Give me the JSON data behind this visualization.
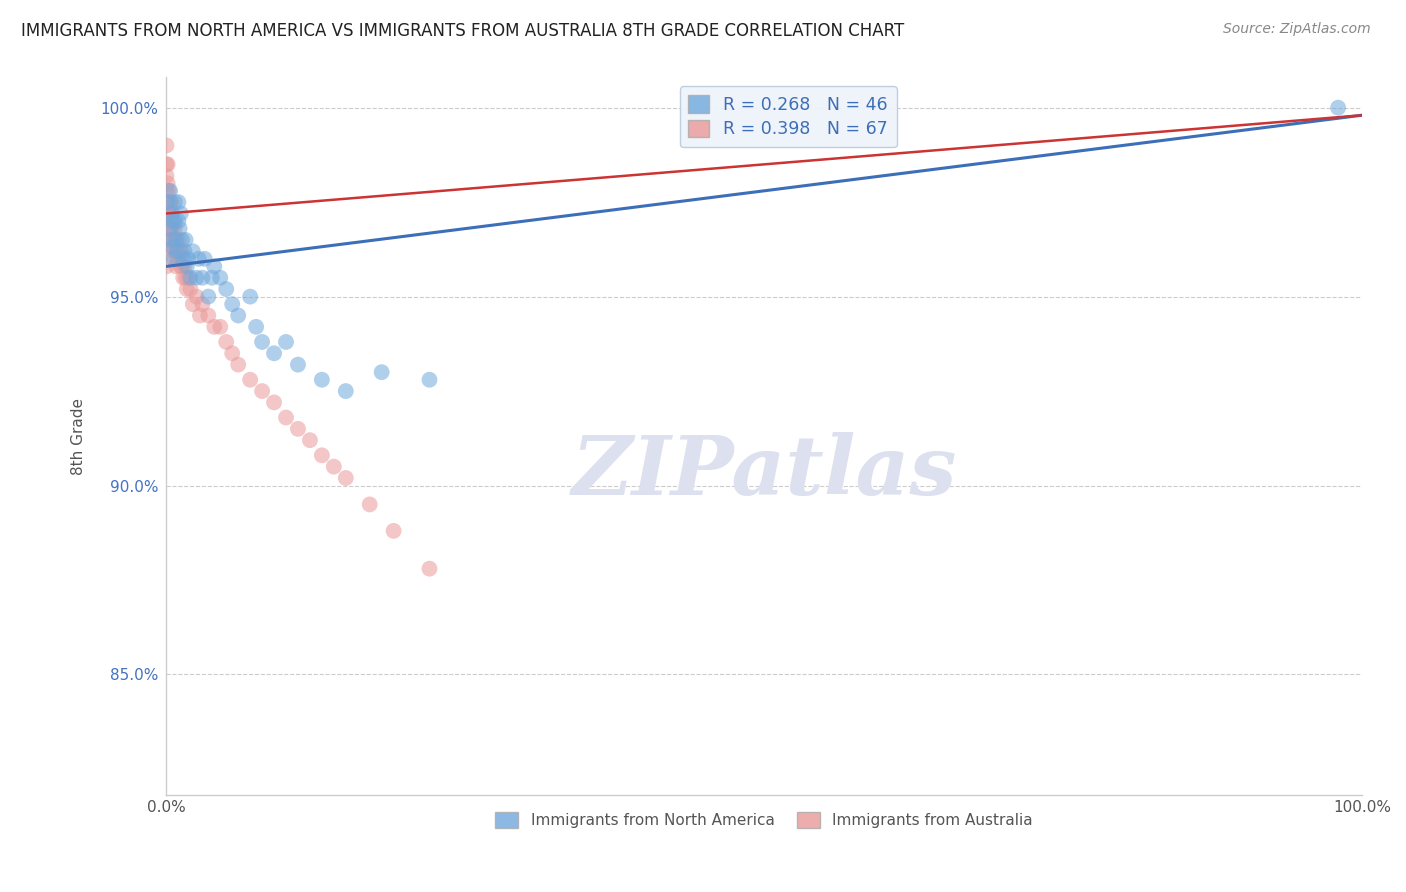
{
  "title": "IMMIGRANTS FROM NORTH AMERICA VS IMMIGRANTS FROM AUSTRALIA 8TH GRADE CORRELATION CHART",
  "source": "Source: ZipAtlas.com",
  "ylabel": "8th Grade",
  "xlim": [
    0.0,
    1.0
  ],
  "ylim": [
    0.818,
    1.008
  ],
  "y_tick_values": [
    0.85,
    0.9,
    0.95,
    1.0
  ],
  "legend_label_blue": "Immigrants from North America",
  "legend_label_pink": "Immigrants from Australia",
  "R_blue": 0.268,
  "N_blue": 46,
  "R_pink": 0.398,
  "N_pink": 67,
  "blue_color": "#6fa8dc",
  "pink_color": "#ea9999",
  "trend_blue_color": "#3d6eb8",
  "trend_pink_color": "#cc3333",
  "background_color": "#ffffff",
  "grid_color": "#cccccc",
  "watermark_color": "#dde0ee",
  "blue_scatter_x": [
    0.001,
    0.002,
    0.003,
    0.003,
    0.004,
    0.005,
    0.005,
    0.006,
    0.007,
    0.007,
    0.008,
    0.009,
    0.01,
    0.01,
    0.011,
    0.012,
    0.013,
    0.014,
    0.015,
    0.016,
    0.017,
    0.018,
    0.02,
    0.022,
    0.025,
    0.027,
    0.03,
    0.032,
    0.035,
    0.038,
    0.04,
    0.045,
    0.05,
    0.055,
    0.06,
    0.07,
    0.075,
    0.08,
    0.09,
    0.1,
    0.11,
    0.13,
    0.15,
    0.18,
    0.22,
    0.98
  ],
  "blue_scatter_y": [
    0.975,
    0.972,
    0.968,
    0.978,
    0.965,
    0.97,
    0.963,
    0.96,
    0.97,
    0.975,
    0.965,
    0.962,
    0.97,
    0.975,
    0.968,
    0.972,
    0.965,
    0.96,
    0.962,
    0.965,
    0.958,
    0.96,
    0.955,
    0.962,
    0.955,
    0.96,
    0.955,
    0.96,
    0.95,
    0.955,
    0.958,
    0.955,
    0.952,
    0.948,
    0.945,
    0.95,
    0.942,
    0.938,
    0.935,
    0.938,
    0.932,
    0.928,
    0.925,
    0.93,
    0.928,
    1.0
  ],
  "pink_scatter_x": [
    0.0,
    0.0,
    0.0,
    0.0,
    0.0,
    0.0,
    0.0,
    0.0,
    0.0,
    0.0,
    0.001,
    0.001,
    0.001,
    0.002,
    0.002,
    0.002,
    0.003,
    0.003,
    0.003,
    0.004,
    0.004,
    0.004,
    0.005,
    0.005,
    0.005,
    0.006,
    0.006,
    0.007,
    0.007,
    0.008,
    0.008,
    0.009,
    0.009,
    0.01,
    0.01,
    0.011,
    0.012,
    0.012,
    0.013,
    0.014,
    0.015,
    0.016,
    0.017,
    0.018,
    0.02,
    0.022,
    0.025,
    0.028,
    0.03,
    0.035,
    0.04,
    0.045,
    0.05,
    0.055,
    0.06,
    0.07,
    0.08,
    0.09,
    0.1,
    0.11,
    0.12,
    0.13,
    0.14,
    0.15,
    0.17,
    0.19,
    0.22
  ],
  "pink_scatter_y": [
    0.99,
    0.985,
    0.982,
    0.978,
    0.975,
    0.972,
    0.968,
    0.965,
    0.962,
    0.958,
    0.985,
    0.98,
    0.975,
    0.978,
    0.972,
    0.968,
    0.975,
    0.972,
    0.968,
    0.975,
    0.972,
    0.968,
    0.972,
    0.968,
    0.965,
    0.965,
    0.962,
    0.965,
    0.968,
    0.962,
    0.958,
    0.96,
    0.963,
    0.965,
    0.96,
    0.962,
    0.958,
    0.962,
    0.958,
    0.955,
    0.958,
    0.955,
    0.952,
    0.955,
    0.952,
    0.948,
    0.95,
    0.945,
    0.948,
    0.945,
    0.942,
    0.942,
    0.938,
    0.935,
    0.932,
    0.928,
    0.925,
    0.922,
    0.918,
    0.915,
    0.912,
    0.908,
    0.905,
    0.902,
    0.895,
    0.888,
    0.878
  ],
  "trend_blue_start_y": 0.958,
  "trend_blue_end_y": 0.998,
  "trend_pink_start_y": 0.972,
  "trend_pink_end_y": 0.998
}
